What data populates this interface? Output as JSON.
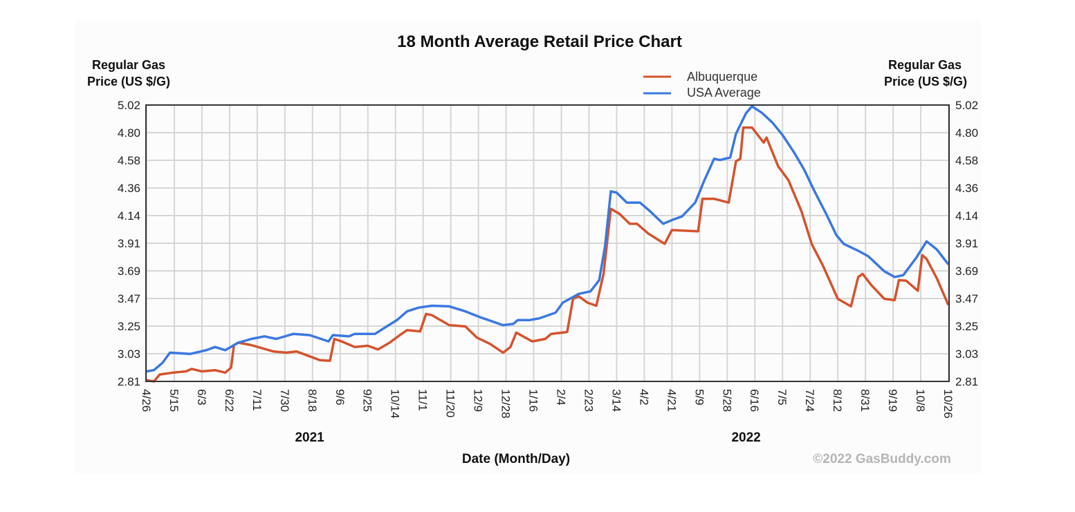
{
  "chart_data": {
    "type": "line",
    "title": "18 Month Average Retail Price Chart",
    "ylabel_left": [
      "Regular Gas",
      "Price (US $/G)"
    ],
    "ylabel_right": [
      "Regular Gas",
      "Price (US $/G)"
    ],
    "xlabel": "Date (Month/Day)",
    "x_unit": "days since 4/26/2021",
    "xlim": [
      0,
      551
    ],
    "ylim": [
      2.81,
      5.02
    ],
    "grid": true,
    "legend_placement": "top-right",
    "y_ticks": [
      "2.81",
      "3.03",
      "3.25",
      "3.47",
      "3.69",
      "3.91",
      "4.14",
      "4.36",
      "4.58",
      "4.80",
      "5.02"
    ],
    "x_tick_step_days": 19,
    "x_ticks": [
      "4/26",
      "5/15",
      "6/3",
      "6/22",
      "7/11",
      "7/30",
      "8/18",
      "9/6",
      "9/25",
      "10/14",
      "11/1",
      "11/20",
      "12/9",
      "12/28",
      "1/16",
      "2/4",
      "2/23",
      "3/14",
      "4/2",
      "4/21",
      "5/9",
      "5/28",
      "6/16",
      "7/5",
      "7/24",
      "8/12",
      "8/31",
      "9/19",
      "10/8",
      "10/26"
    ],
    "year_labels": [
      {
        "label": "2021",
        "day": 112
      },
      {
        "label": "2022",
        "day": 412
      }
    ],
    "copyright": "©2022 GasBuddy.com",
    "series": [
      {
        "name": "Albuquerque",
        "color": "#d4532d",
        "points": [
          [
            0,
            2.82
          ],
          [
            5,
            2.81
          ],
          [
            9,
            2.865
          ],
          [
            18,
            2.88
          ],
          [
            27,
            2.89
          ],
          [
            31,
            2.91
          ],
          [
            38,
            2.89
          ],
          [
            47,
            2.9
          ],
          [
            54,
            2.88
          ],
          [
            58,
            2.92
          ],
          [
            60,
            3.1
          ],
          [
            63,
            3.12
          ],
          [
            72,
            3.1
          ],
          [
            87,
            3.05
          ],
          [
            96,
            3.04
          ],
          [
            103,
            3.05
          ],
          [
            119,
            2.98
          ],
          [
            126,
            2.975
          ],
          [
            129,
            3.15
          ],
          [
            134,
            3.13
          ],
          [
            143,
            3.085
          ],
          [
            152,
            3.095
          ],
          [
            159,
            3.065
          ],
          [
            167,
            3.12
          ],
          [
            174,
            3.18
          ],
          [
            179,
            3.22
          ],
          [
            188,
            3.21
          ],
          [
            192,
            3.35
          ],
          [
            196,
            3.34
          ],
          [
            208,
            3.26
          ],
          [
            219,
            3.25
          ],
          [
            227,
            3.16
          ],
          [
            236,
            3.11
          ],
          [
            245,
            3.04
          ],
          [
            250,
            3.085
          ],
          [
            254,
            3.2
          ],
          [
            265,
            3.13
          ],
          [
            274,
            3.15
          ],
          [
            278,
            3.19
          ],
          [
            289,
            3.205
          ],
          [
            293,
            3.47
          ],
          [
            297,
            3.49
          ],
          [
            303,
            3.44
          ],
          [
            309,
            3.415
          ],
          [
            314,
            3.67
          ],
          [
            319,
            4.19
          ],
          [
            325,
            4.15
          ],
          [
            332,
            4.07
          ],
          [
            337,
            4.07
          ],
          [
            345,
            3.99
          ],
          [
            356,
            3.91
          ],
          [
            361,
            4.02
          ],
          [
            379,
            4.01
          ],
          [
            382,
            4.27
          ],
          [
            390,
            4.27
          ],
          [
            400,
            4.24
          ],
          [
            405,
            4.57
          ],
          [
            408,
            4.59
          ],
          [
            410,
            4.84
          ],
          [
            416,
            4.84
          ],
          [
            424,
            4.72
          ],
          [
            426,
            4.76
          ],
          [
            434,
            4.53
          ],
          [
            441,
            4.42
          ],
          [
            450,
            4.17
          ],
          [
            457,
            3.91
          ],
          [
            465,
            3.73
          ],
          [
            475,
            3.47
          ],
          [
            484,
            3.41
          ],
          [
            489,
            3.645
          ],
          [
            492,
            3.67
          ],
          [
            498,
            3.58
          ],
          [
            507,
            3.47
          ],
          [
            514,
            3.46
          ],
          [
            517,
            3.62
          ],
          [
            522,
            3.615
          ],
          [
            530,
            3.535
          ],
          [
            533,
            3.82
          ],
          [
            536,
            3.79
          ],
          [
            543,
            3.635
          ],
          [
            551,
            3.42
          ]
        ]
      },
      {
        "name": "USA Average",
        "color": "#3b78e0",
        "points": [
          [
            0,
            2.89
          ],
          [
            5,
            2.9
          ],
          [
            11,
            2.96
          ],
          [
            16,
            3.04
          ],
          [
            30,
            3.03
          ],
          [
            41,
            3.06
          ],
          [
            47,
            3.085
          ],
          [
            54,
            3.06
          ],
          [
            63,
            3.12
          ],
          [
            72,
            3.15
          ],
          [
            81,
            3.17
          ],
          [
            89,
            3.15
          ],
          [
            101,
            3.19
          ],
          [
            112,
            3.18
          ],
          [
            125,
            3.13
          ],
          [
            128,
            3.18
          ],
          [
            139,
            3.17
          ],
          [
            143,
            3.19
          ],
          [
            157,
            3.19
          ],
          [
            165,
            3.25
          ],
          [
            172,
            3.3
          ],
          [
            179,
            3.37
          ],
          [
            187,
            3.4
          ],
          [
            196,
            3.415
          ],
          [
            208,
            3.41
          ],
          [
            219,
            3.37
          ],
          [
            230,
            3.32
          ],
          [
            245,
            3.26
          ],
          [
            252,
            3.27
          ],
          [
            255,
            3.3
          ],
          [
            263,
            3.3
          ],
          [
            270,
            3.315
          ],
          [
            281,
            3.36
          ],
          [
            286,
            3.44
          ],
          [
            297,
            3.51
          ],
          [
            305,
            3.53
          ],
          [
            311,
            3.62
          ],
          [
            315,
            3.89
          ],
          [
            319,
            4.33
          ],
          [
            323,
            4.32
          ],
          [
            330,
            4.24
          ],
          [
            339,
            4.24
          ],
          [
            346,
            4.17
          ],
          [
            355,
            4.07
          ],
          [
            361,
            4.1
          ],
          [
            368,
            4.13
          ],
          [
            377,
            4.24
          ],
          [
            383,
            4.41
          ],
          [
            390,
            4.59
          ],
          [
            394,
            4.58
          ],
          [
            401,
            4.6
          ],
          [
            405,
            4.79
          ],
          [
            412,
            4.956
          ],
          [
            416,
            5.01
          ],
          [
            423,
            4.956
          ],
          [
            430,
            4.88
          ],
          [
            437,
            4.78
          ],
          [
            445,
            4.64
          ],
          [
            452,
            4.5
          ],
          [
            459,
            4.33
          ],
          [
            467,
            4.15
          ],
          [
            474,
            3.98
          ],
          [
            479,
            3.91
          ],
          [
            489,
            3.855
          ],
          [
            496,
            3.81
          ],
          [
            507,
            3.69
          ],
          [
            514,
            3.645
          ],
          [
            520,
            3.66
          ],
          [
            529,
            3.8
          ],
          [
            536,
            3.93
          ],
          [
            543,
            3.865
          ],
          [
            551,
            3.745
          ]
        ]
      }
    ]
  }
}
